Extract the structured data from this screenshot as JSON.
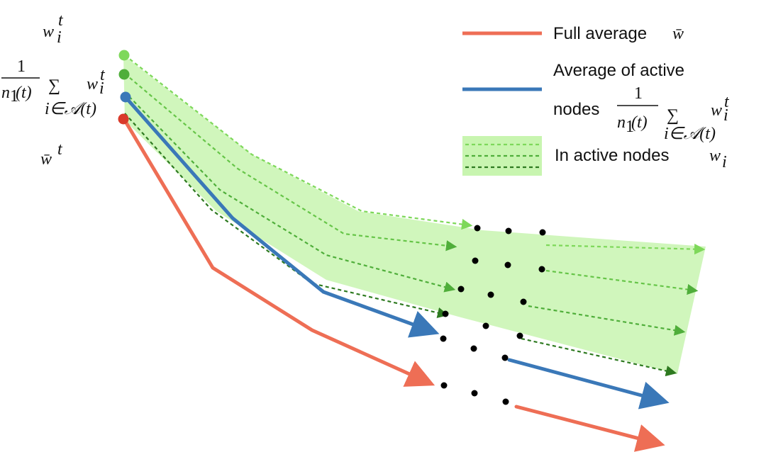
{
  "colors": {
    "full_average": "#EE6E55",
    "active_average": "#3A78B8",
    "light_green": "#7ED85A",
    "mid_green": "#4FAE3A",
    "dark_green": "#2E7A20",
    "band_fill": "#C8F5B0",
    "start_red": "#D93A2B",
    "dots": "#000000"
  },
  "labels": {
    "w_i": "w",
    "w_i_sup": "t",
    "w_i_sub": "i",
    "avg_numerator": "1",
    "avg_denominator": "n",
    "avg_denominator_sub": "1",
    "avg_denominator_arg": "(t)",
    "avg_sigma": "∑",
    "avg_sigma_sub": "i∈𝒜(t)",
    "w_bar": "w̄",
    "w_bar_sup": "t"
  },
  "legend": {
    "full_average": "Full average",
    "full_average_symbol": "w̄",
    "active_average_line1": "Average of active",
    "active_average_line2": "nodes",
    "active_nodes": "In active nodes",
    "active_nodes_symbol": "w",
    "active_nodes_symbol_sub": "i"
  }
}
